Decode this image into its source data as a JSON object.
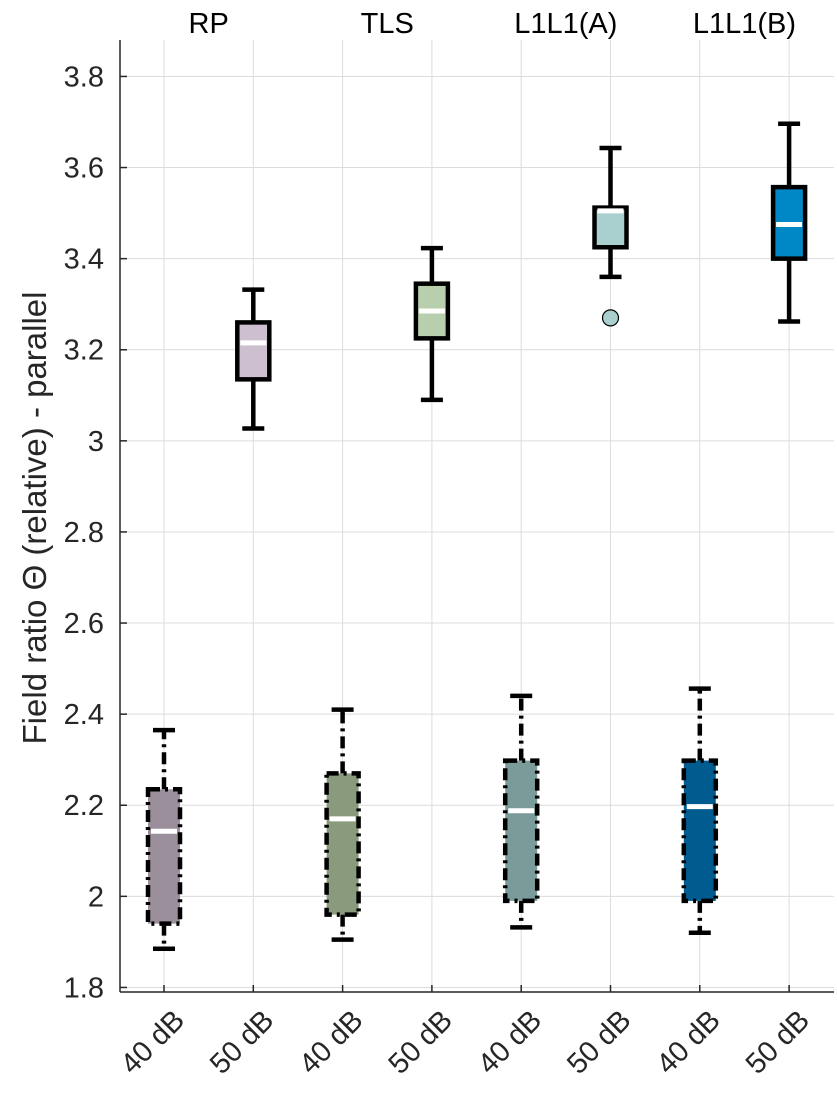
{
  "chart_data": {
    "type": "box",
    "title": "",
    "xlabel": "",
    "ylabel": "Field ratio Θ (relative) - parallel",
    "ylim": [
      1.79,
      3.88
    ],
    "yticks": [
      1.8,
      2.0,
      2.2,
      2.4,
      2.6,
      2.8,
      3.0,
      3.2,
      3.4,
      3.6,
      3.8
    ],
    "ytick_labels": [
      "1.8",
      "2",
      "2.2",
      "2.4",
      "2.6",
      "2.8",
      "3",
      "3.2",
      "3.4",
      "3.6",
      "3.8"
    ],
    "grid": true,
    "groups": [
      "RP",
      "TLS",
      "L1L1(A)",
      "L1L1(B)"
    ],
    "categories": [
      "40 dB",
      "50 dB",
      "40 dB",
      "50 dB",
      "40 dB",
      "50 dB",
      "40 dB",
      "50 dB"
    ],
    "boxes": [
      {
        "group": "RP",
        "level": "40 dB",
        "whisker_low": 1.885,
        "q1": 1.94,
        "median": 2.143,
        "q3": 2.235,
        "whisker_high": 2.365,
        "outliers": [],
        "color": "#9a8f9b",
        "style": "dashdot"
      },
      {
        "group": "RP",
        "level": "50 dB",
        "whisker_low": 3.027,
        "q1": 3.135,
        "median": 3.215,
        "q3": 3.26,
        "whisker_high": 3.332,
        "outliers": [],
        "color": "#cdbfd0",
        "style": "solid"
      },
      {
        "group": "TLS",
        "level": "40 dB",
        "whisker_low": 1.905,
        "q1": 1.96,
        "median": 2.17,
        "q3": 2.27,
        "whisker_high": 2.41,
        "outliers": [],
        "color": "#8a9a7c",
        "style": "dashdot"
      },
      {
        "group": "TLS",
        "level": "50 dB",
        "whisker_low": 3.09,
        "q1": 3.225,
        "median": 3.285,
        "q3": 3.345,
        "whisker_high": 3.423,
        "outliers": [],
        "color": "#b8cfae",
        "style": "solid"
      },
      {
        "group": "L1L1(A)",
        "level": "40 dB",
        "whisker_low": 1.932,
        "q1": 1.99,
        "median": 2.188,
        "q3": 2.298,
        "whisker_high": 2.44,
        "outliers": [],
        "color": "#7b9a9a",
        "style": "dashdot"
      },
      {
        "group": "L1L1(A)",
        "level": "50 dB",
        "whisker_low": 3.36,
        "q1": 3.425,
        "median": 3.505,
        "q3": 3.512,
        "whisker_high": 3.643,
        "outliers": [
          3.27
        ],
        "color": "#a9cfcf",
        "style": "solid"
      },
      {
        "group": "L1L1(B)",
        "level": "40 dB",
        "whisker_low": 1.92,
        "q1": 1.99,
        "median": 2.197,
        "q3": 2.298,
        "whisker_high": 2.456,
        "outliers": [],
        "color": "#005b8f",
        "style": "dashdot"
      },
      {
        "group": "L1L1(B)",
        "level": "50 dB",
        "whisker_low": 3.262,
        "q1": 3.4,
        "median": 3.475,
        "q3": 3.557,
        "whisker_high": 3.696,
        "outliers": [],
        "color": "#0088c6",
        "style": "solid"
      }
    ]
  }
}
